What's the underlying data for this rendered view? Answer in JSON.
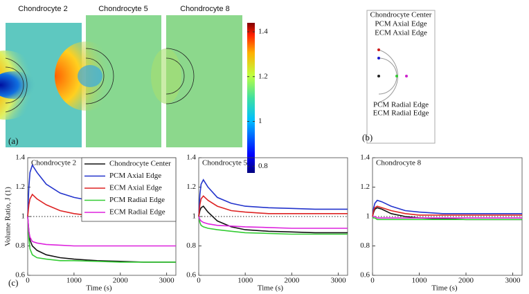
{
  "panel_a": {
    "label": "(a)",
    "titles": [
      "Chondrocyte 2",
      "Chondrocyte 5",
      "Chondrocyte 8"
    ],
    "colorbar": {
      "clim": [
        0.77,
        1.44
      ],
      "ticks": [
        1.4,
        1.2,
        1,
        0.8
      ]
    }
  },
  "panel_b": {
    "label": "(b)",
    "labels": [
      {
        "text": "Chondrocyte Center",
        "color": "#222222"
      },
      {
        "text": "PCM Axial Edge",
        "color": "#1a1acc"
      },
      {
        "text": "ECM Axial Edge",
        "color": "#cc1a1a"
      },
      {
        "text": "PCM Radial Edge",
        "color": "#33cc33"
      },
      {
        "text": "ECM Radial Edge",
        "color": "#cc22cc"
      }
    ]
  },
  "panel_c_label": "(c)",
  "chart_data": [
    {
      "type": "line",
      "title": "Chondrocyte 2",
      "xlabel": "Time (s)",
      "ylabel": "Volume Ratio, J (1)",
      "x": [
        0,
        25,
        50,
        100,
        200,
        400,
        700,
        1000,
        1500,
        2000,
        2500,
        3200
      ],
      "xlim": [
        0,
        3200
      ],
      "xticks": [
        0,
        1000,
        2000,
        3000
      ],
      "ylim": [
        0.6,
        1.4
      ],
      "yticks": [
        0.6,
        0.8,
        1,
        1.2,
        1.4
      ],
      "hline": 1,
      "legend": "upper right",
      "series": [
        {
          "name": "Chondrocyte Center",
          "color": "#111111",
          "values": [
            1,
            0.9,
            0.84,
            0.8,
            0.77,
            0.74,
            0.72,
            0.71,
            0.7,
            0.695,
            0.69,
            0.69
          ]
        },
        {
          "name": "PCM Axial Edge",
          "color": "#2233cc",
          "values": [
            1,
            1.2,
            1.3,
            1.35,
            1.3,
            1.22,
            1.16,
            1.13,
            1.1,
            1.09,
            1.08,
            1.08
          ]
        },
        {
          "name": "ECM Axial Edge",
          "color": "#dd2222",
          "values": [
            1,
            1.08,
            1.12,
            1.15,
            1.12,
            1.08,
            1.04,
            1.02,
            1.0,
            0.99,
            0.99,
            0.99
          ]
        },
        {
          "name": "PCM Radial Edge",
          "color": "#33cc33",
          "values": [
            1,
            0.85,
            0.78,
            0.74,
            0.72,
            0.71,
            0.7,
            0.7,
            0.695,
            0.69,
            0.69,
            0.69
          ]
        },
        {
          "name": "ECM Radial Edge",
          "color": "#dd22dd",
          "values": [
            1,
            0.9,
            0.86,
            0.83,
            0.82,
            0.81,
            0.805,
            0.8,
            0.8,
            0.8,
            0.8,
            0.8
          ]
        }
      ]
    },
    {
      "type": "line",
      "title": "Chondrocyte 5",
      "xlabel": "Time (s)",
      "x": [
        0,
        25,
        50,
        100,
        200,
        400,
        700,
        1000,
        1500,
        2000,
        2500,
        3200
      ],
      "xlim": [
        0,
        3200
      ],
      "xticks": [
        0,
        1000,
        2000,
        3000
      ],
      "ylim": [
        0.6,
        1.4
      ],
      "yticks": [
        0.6,
        0.8,
        1,
        1.2,
        1.4
      ],
      "hline": 1,
      "series": [
        {
          "color": "#111111",
          "values": [
            1,
            1.04,
            1.06,
            1.07,
            1.03,
            0.97,
            0.93,
            0.91,
            0.9,
            0.895,
            0.89,
            0.89
          ]
        },
        {
          "color": "#2233cc",
          "values": [
            1,
            1.15,
            1.22,
            1.25,
            1.2,
            1.13,
            1.09,
            1.07,
            1.06,
            1.055,
            1.05,
            1.05
          ]
        },
        {
          "color": "#dd2222",
          "values": [
            1,
            1.08,
            1.12,
            1.14,
            1.11,
            1.07,
            1.04,
            1.03,
            1.02,
            1.02,
            1.02,
            1.02
          ]
        },
        {
          "color": "#33cc33",
          "values": [
            1,
            0.96,
            0.94,
            0.93,
            0.92,
            0.91,
            0.9,
            0.89,
            0.885,
            0.88,
            0.88,
            0.88
          ]
        },
        {
          "color": "#dd22dd",
          "values": [
            1,
            0.98,
            0.97,
            0.96,
            0.95,
            0.94,
            0.935,
            0.93,
            0.925,
            0.92,
            0.92,
            0.92
          ]
        }
      ]
    },
    {
      "type": "line",
      "title": "Chondrocyte 8",
      "xlabel": "Time (s)",
      "x": [
        0,
        25,
        50,
        100,
        200,
        400,
        700,
        1000,
        1500,
        2000,
        2500,
        3200
      ],
      "xlim": [
        0,
        3200
      ],
      "xticks": [
        0,
        1000,
        2000,
        3000
      ],
      "ylim": [
        0.6,
        1.4
      ],
      "yticks": [
        0.6,
        0.8,
        1,
        1.2,
        1.4
      ],
      "hline": 1,
      "series": [
        {
          "color": "#111111",
          "values": [
            1,
            1.03,
            1.05,
            1.06,
            1.05,
            1.02,
            1.0,
            0.99,
            0.985,
            0.98,
            0.98,
            0.98
          ]
        },
        {
          "color": "#2233cc",
          "values": [
            1,
            1.06,
            1.09,
            1.11,
            1.1,
            1.07,
            1.04,
            1.03,
            1.02,
            1.02,
            1.02,
            1.02
          ]
        },
        {
          "color": "#dd2222",
          "values": [
            1,
            1.04,
            1.06,
            1.07,
            1.06,
            1.04,
            1.02,
            1.01,
            1.01,
            1.01,
            1.01,
            1.01
          ]
        },
        {
          "color": "#33cc33",
          "values": [
            1,
            0.99,
            0.99,
            0.98,
            0.98,
            0.98,
            0.98,
            0.98,
            0.98,
            0.98,
            0.98,
            0.98
          ]
        },
        {
          "color": "#dd22dd",
          "values": [
            1,
            1.0,
            1.0,
            0.99,
            0.99,
            0.99,
            0.99,
            0.99,
            0.99,
            0.99,
            0.99,
            0.99
          ]
        }
      ]
    }
  ]
}
